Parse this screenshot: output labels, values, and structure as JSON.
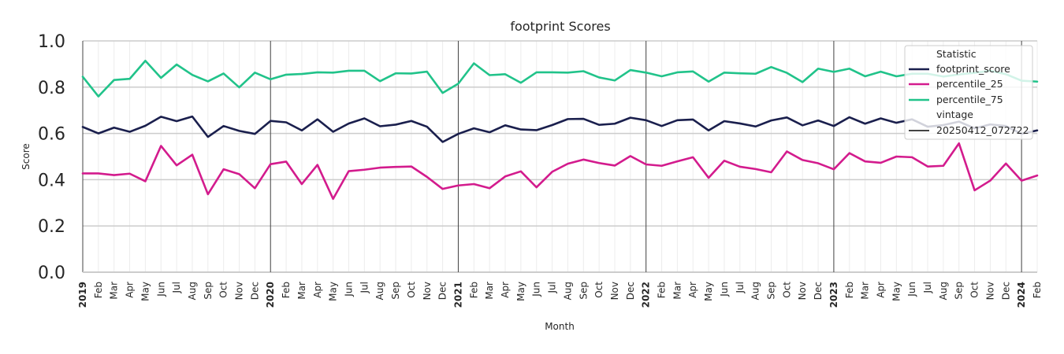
{
  "chart_data": {
    "type": "line",
    "title": "footprint Scores",
    "xlabel": "Month",
    "ylabel": "Score",
    "ylim": [
      0.0,
      1.0
    ],
    "yticks": [
      "0.0",
      "0.2",
      "0.4",
      "0.6",
      "0.8",
      "1.0"
    ],
    "grid": true,
    "legend_position": "top-right",
    "x": [
      "2019-01",
      "2019-02",
      "2019-03",
      "2019-04",
      "2019-05",
      "2019-06",
      "2019-07",
      "2019-08",
      "2019-09",
      "2019-10",
      "2019-11",
      "2019-12",
      "2020-01",
      "2020-02",
      "2020-03",
      "2020-04",
      "2020-05",
      "2020-06",
      "2020-07",
      "2020-08",
      "2020-09",
      "2020-10",
      "2020-11",
      "2020-12",
      "2021-01",
      "2021-02",
      "2021-03",
      "2021-04",
      "2021-05",
      "2021-06",
      "2021-07",
      "2021-08",
      "2021-09",
      "2021-10",
      "2021-11",
      "2021-12",
      "2022-01",
      "2022-02",
      "2022-03",
      "2022-04",
      "2022-05",
      "2022-06",
      "2022-07",
      "2022-08",
      "2022-09",
      "2022-10",
      "2022-11",
      "2022-12",
      "2023-01",
      "2023-02",
      "2023-03",
      "2023-04",
      "2023-05",
      "2023-06",
      "2023-07",
      "2023-08",
      "2023-09",
      "2023-10",
      "2023-11",
      "2023-12",
      "2024-01",
      "2024-02"
    ],
    "xtick_labels": [
      "2019",
      "Feb",
      "Mar",
      "Apr",
      "May",
      "Jun",
      "Jul",
      "Aug",
      "Sep",
      "Oct",
      "Nov",
      "Dec",
      "2020",
      "Feb",
      "Mar",
      "Apr",
      "May",
      "Jun",
      "Jul",
      "Aug",
      "Sep",
      "Oct",
      "Nov",
      "Dec",
      "2021",
      "Feb",
      "Mar",
      "Apr",
      "May",
      "Jun",
      "Jul",
      "Aug",
      "Sep",
      "Oct",
      "Nov",
      "Dec",
      "2022",
      "Feb",
      "Mar",
      "Apr",
      "May",
      "Jun",
      "Jul",
      "Aug",
      "Sep",
      "Oct",
      "Nov",
      "Dec",
      "2023",
      "Feb",
      "Mar",
      "Apr",
      "May",
      "Jun",
      "Jul",
      "Aug",
      "Sep",
      "Oct",
      "Nov",
      "Dec",
      "2024",
      "Feb"
    ],
    "year_marks": [
      "2020-01",
      "2021-01",
      "2022-01",
      "2023-01",
      "2024-01"
    ],
    "series": [
      {
        "name": "footprint_score",
        "color": "#1a1f4d",
        "values": [
          0.628,
          0.6,
          0.625,
          0.607,
          0.633,
          0.672,
          0.653,
          0.673,
          0.585,
          0.632,
          0.611,
          0.598,
          0.654,
          0.648,
          0.613,
          0.661,
          0.607,
          0.643,
          0.665,
          0.631,
          0.638,
          0.654,
          0.629,
          0.563,
          0.598,
          0.622,
          0.605,
          0.635,
          0.617,
          0.614,
          0.636,
          0.662,
          0.663,
          0.637,
          0.642,
          0.668,
          0.657,
          0.632,
          0.657,
          0.66,
          0.613,
          0.653,
          0.643,
          0.63,
          0.656,
          0.669,
          0.635,
          0.656,
          0.632,
          0.67,
          0.642,
          0.665,
          0.646,
          0.661,
          0.629,
          0.636,
          0.651,
          0.622,
          0.639,
          0.632,
          0.598,
          0.613
        ]
      },
      {
        "name": "percentile_25",
        "color": "#d31b8d",
        "values": [
          0.427,
          0.427,
          0.42,
          0.426,
          0.393,
          0.546,
          0.462,
          0.508,
          0.337,
          0.445,
          0.424,
          0.363,
          0.467,
          0.478,
          0.381,
          0.464,
          0.317,
          0.437,
          0.443,
          0.452,
          0.455,
          0.457,
          0.412,
          0.36,
          0.375,
          0.381,
          0.363,
          0.414,
          0.436,
          0.367,
          0.434,
          0.469,
          0.487,
          0.472,
          0.461,
          0.502,
          0.466,
          0.46,
          0.479,
          0.497,
          0.408,
          0.482,
          0.456,
          0.446,
          0.432,
          0.522,
          0.485,
          0.471,
          0.445,
          0.515,
          0.479,
          0.473,
          0.5,
          0.497,
          0.457,
          0.46,
          0.557,
          0.354,
          0.396,
          0.47,
          0.396,
          0.418
        ]
      },
      {
        "name": "percentile_75",
        "color": "#21c38a",
        "values": [
          0.845,
          0.76,
          0.831,
          0.836,
          0.914,
          0.84,
          0.898,
          0.853,
          0.825,
          0.859,
          0.799,
          0.863,
          0.834,
          0.854,
          0.857,
          0.864,
          0.863,
          0.871,
          0.871,
          0.826,
          0.86,
          0.859,
          0.867,
          0.775,
          0.815,
          0.903,
          0.852,
          0.856,
          0.819,
          0.864,
          0.864,
          0.863,
          0.869,
          0.842,
          0.829,
          0.874,
          0.863,
          0.847,
          0.864,
          0.868,
          0.824,
          0.863,
          0.86,
          0.858,
          0.887,
          0.862,
          0.822,
          0.88,
          0.866,
          0.88,
          0.847,
          0.867,
          0.847,
          0.858,
          0.858,
          0.846,
          0.855,
          0.862,
          0.871,
          0.856,
          0.828,
          0.824
        ]
      }
    ],
    "legend": {
      "title": "Statistic",
      "entries": [
        "footprint_score",
        "percentile_25",
        "percentile_75"
      ],
      "subtitle": "vintage",
      "vintage_entry": "20250412_072722",
      "vintage_color": "#444444"
    },
    "colors": {
      "grid_major": "#cccccc",
      "grid_minor": "#ececec",
      "year_line": "#444444",
      "axis_spine": "#cccccc"
    }
  }
}
